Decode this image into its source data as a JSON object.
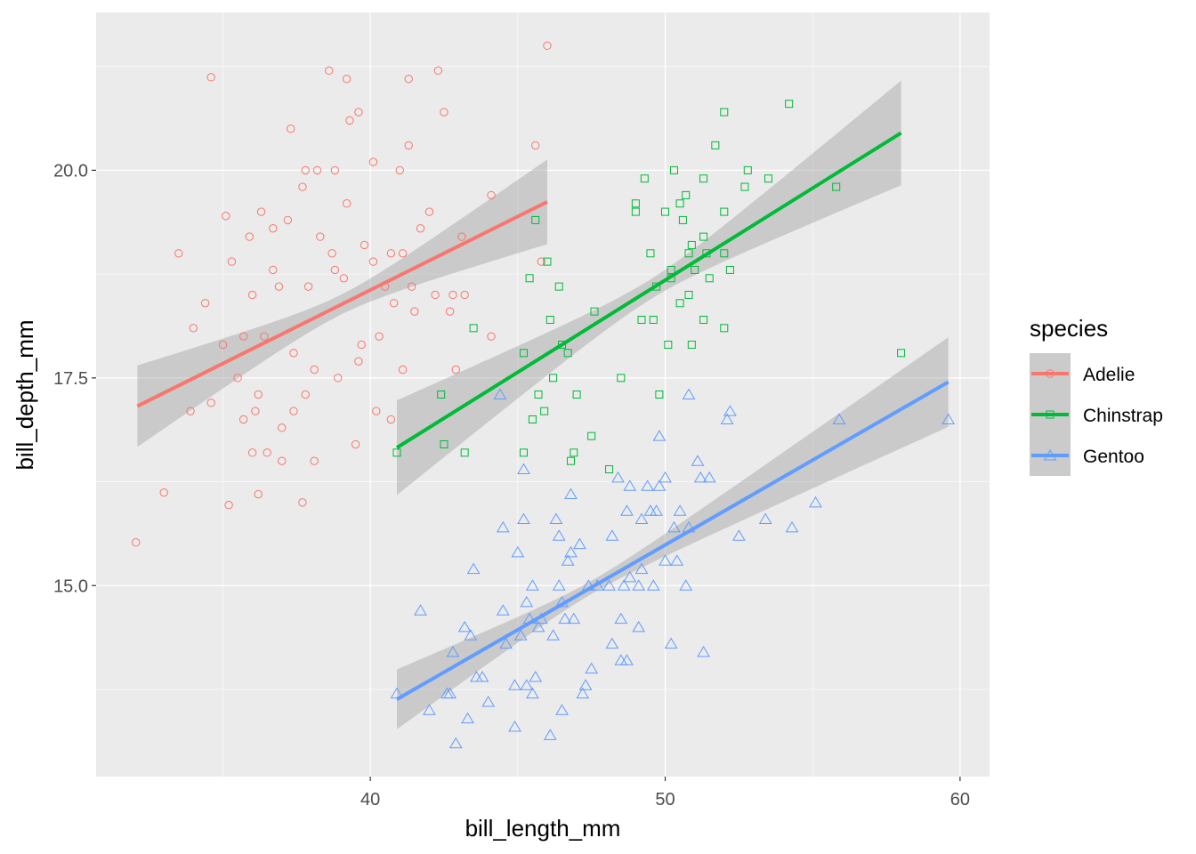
{
  "chart_data": {
    "type": "scatter",
    "title": "",
    "xlabel": "bill_length_mm",
    "ylabel": "bill_depth_mm",
    "xlim": [
      30.7,
      61.0
    ],
    "ylim": [
      12.7,
      21.9
    ],
    "xticks": [
      40,
      50,
      60
    ],
    "xtick_labels": [
      "40",
      "50",
      "60"
    ],
    "yticks": [
      15,
      17.5,
      20
    ],
    "ytick_labels": [
      "15.0",
      "17.5",
      "20.0"
    ],
    "grid": true,
    "legend": {
      "title": "species",
      "placement": "right"
    },
    "series": [
      {
        "name": "Adelie",
        "color": "#F8766D",
        "shape": "circle",
        "fit": {
          "x": [
            32.1,
            46.0
          ],
          "y": [
            17.16,
            19.62
          ]
        },
        "band": {
          "x": [
            32.1,
            39.0,
            46.0
          ],
          "half_width": [
            0.49,
            0.12,
            0.51
          ]
        },
        "points": [
          [
            32.05,
            15.52
          ],
          [
            33.0,
            16.12
          ],
          [
            33.5,
            19.0
          ],
          [
            34.6,
            21.12
          ],
          [
            34.0,
            18.1
          ],
          [
            34.4,
            18.4
          ],
          [
            33.9,
            17.1
          ],
          [
            34.6,
            17.2
          ],
          [
            35.1,
            19.45
          ],
          [
            35.0,
            17.9
          ],
          [
            35.2,
            15.97
          ],
          [
            35.3,
            18.9
          ],
          [
            35.5,
            17.5
          ],
          [
            35.7,
            18.0
          ],
          [
            35.7,
            17.0
          ],
          [
            35.9,
            19.2
          ],
          [
            36.0,
            16.6
          ],
          [
            36.0,
            18.5
          ],
          [
            36.1,
            17.1
          ],
          [
            36.3,
            19.5
          ],
          [
            36.2,
            17.3
          ],
          [
            36.2,
            16.1
          ],
          [
            36.4,
            18.0
          ],
          [
            36.5,
            16.6
          ],
          [
            36.7,
            19.3
          ],
          [
            36.7,
            18.8
          ],
          [
            36.9,
            18.6
          ],
          [
            37.0,
            16.5
          ],
          [
            37.0,
            16.9
          ],
          [
            37.2,
            19.4
          ],
          [
            37.3,
            20.5
          ],
          [
            37.4,
            17.8
          ],
          [
            37.4,
            17.1
          ],
          [
            37.7,
            19.8
          ],
          [
            37.7,
            16.0
          ],
          [
            37.8,
            20.0
          ],
          [
            37.8,
            17.3
          ],
          [
            37.9,
            18.6
          ],
          [
            38.1,
            17.6
          ],
          [
            38.1,
            16.5
          ],
          [
            38.2,
            20.0
          ],
          [
            38.3,
            19.2
          ],
          [
            38.6,
            21.2
          ],
          [
            38.7,
            19.0
          ],
          [
            38.8,
            20.0
          ],
          [
            38.8,
            18.8
          ],
          [
            38.9,
            17.5
          ],
          [
            39.1,
            18.7
          ],
          [
            39.2,
            19.6
          ],
          [
            39.2,
            21.1
          ],
          [
            39.3,
            20.6
          ],
          [
            39.6,
            20.7
          ],
          [
            39.5,
            16.7
          ],
          [
            39.6,
            17.7
          ],
          [
            39.7,
            17.9
          ],
          [
            39.8,
            19.1
          ],
          [
            40.1,
            20.1
          ],
          [
            40.2,
            17.1
          ],
          [
            40.1,
            18.9
          ],
          [
            40.3,
            18.0
          ],
          [
            40.5,
            18.6
          ],
          [
            40.7,
            19.0
          ],
          [
            40.7,
            17.0
          ],
          [
            40.8,
            18.4
          ],
          [
            41.0,
            20.0
          ],
          [
            41.1,
            19.0
          ],
          [
            41.1,
            17.6
          ],
          [
            41.3,
            20.3
          ],
          [
            41.3,
            21.1
          ],
          [
            41.4,
            18.6
          ],
          [
            41.5,
            18.3
          ],
          [
            41.7,
            19.3
          ],
          [
            42.0,
            19.5
          ],
          [
            42.2,
            18.5
          ],
          [
            42.3,
            21.2
          ],
          [
            42.5,
            20.7
          ],
          [
            42.7,
            18.3
          ],
          [
            42.8,
            18.5
          ],
          [
            42.9,
            17.6
          ],
          [
            43.1,
            19.2
          ],
          [
            43.2,
            18.5
          ],
          [
            44.1,
            19.7
          ],
          [
            44.1,
            18.0
          ],
          [
            45.6,
            20.3
          ],
          [
            45.8,
            18.9
          ],
          [
            46.0,
            21.5
          ]
        ]
      },
      {
        "name": "Chinstrap",
        "color": "#00BA38",
        "shape": "square",
        "fit": {
          "x": [
            40.9,
            58.0
          ],
          "y": [
            16.66,
            20.45
          ]
        },
        "band": {
          "x": [
            40.9,
            49.5,
            58.0
          ],
          "half_width": [
            0.57,
            0.12,
            0.63
          ]
        },
        "points": [
          [
            40.9,
            16.6
          ],
          [
            42.4,
            17.3
          ],
          [
            42.5,
            16.7
          ],
          [
            43.2,
            16.6
          ],
          [
            43.5,
            18.1
          ],
          [
            45.2,
            17.8
          ],
          [
            45.2,
            16.6
          ],
          [
            45.4,
            18.7
          ],
          [
            45.6,
            19.4
          ],
          [
            45.5,
            17.0
          ],
          [
            45.7,
            17.3
          ],
          [
            45.9,
            17.1
          ],
          [
            46.0,
            18.9
          ],
          [
            46.1,
            18.2
          ],
          [
            46.2,
            17.5
          ],
          [
            46.4,
            18.6
          ],
          [
            46.5,
            17.9
          ],
          [
            46.7,
            17.8
          ],
          [
            46.8,
            16.5
          ],
          [
            46.9,
            16.6
          ],
          [
            47.0,
            17.3
          ],
          [
            47.5,
            16.8
          ],
          [
            47.6,
            18.3
          ],
          [
            48.1,
            16.4
          ],
          [
            48.5,
            17.5
          ],
          [
            49.0,
            19.6
          ],
          [
            49.0,
            19.5
          ],
          [
            49.3,
            19.9
          ],
          [
            49.2,
            18.2
          ],
          [
            49.5,
            19.0
          ],
          [
            49.6,
            18.2
          ],
          [
            49.7,
            18.6
          ],
          [
            49.8,
            17.3
          ],
          [
            50.0,
            19.5
          ],
          [
            50.1,
            17.9
          ],
          [
            50.2,
            18.7
          ],
          [
            50.2,
            18.8
          ],
          [
            50.3,
            20.0
          ],
          [
            50.5,
            19.6
          ],
          [
            50.5,
            18.4
          ],
          [
            50.6,
            19.4
          ],
          [
            50.7,
            19.7
          ],
          [
            50.8,
            19.0
          ],
          [
            50.8,
            18.5
          ],
          [
            50.9,
            17.9
          ],
          [
            50.9,
            19.1
          ],
          [
            51.0,
            18.8
          ],
          [
            51.3,
            19.2
          ],
          [
            51.3,
            19.9
          ],
          [
            51.3,
            18.2
          ],
          [
            51.4,
            19.0
          ],
          [
            51.5,
            18.7
          ],
          [
            51.7,
            20.3
          ],
          [
            52.0,
            19.5
          ],
          [
            52.0,
            20.7
          ],
          [
            52.0,
            19.0
          ],
          [
            52.0,
            18.1
          ],
          [
            52.2,
            18.8
          ],
          [
            52.7,
            19.8
          ],
          [
            52.8,
            20.0
          ],
          [
            53.5,
            19.9
          ],
          [
            54.2,
            20.8
          ],
          [
            55.8,
            19.8
          ],
          [
            58.0,
            17.8
          ]
        ]
      },
      {
        "name": "Gentoo",
        "color": "#619CFF",
        "shape": "triangle",
        "fit": {
          "x": [
            40.9,
            59.6
          ],
          "y": [
            13.63,
            17.45
          ]
        },
        "band": {
          "x": [
            40.9,
            47.5,
            59.6
          ],
          "half_width": [
            0.36,
            0.08,
            0.54
          ]
        },
        "points": [
          [
            40.9,
            13.7
          ],
          [
            41.7,
            14.7
          ],
          [
            42.0,
            13.5
          ],
          [
            42.6,
            13.7
          ],
          [
            42.7,
            13.7
          ],
          [
            42.8,
            14.2
          ],
          [
            42.9,
            13.1
          ],
          [
            43.2,
            14.5
          ],
          [
            43.3,
            13.4
          ],
          [
            43.4,
            14.4
          ],
          [
            43.5,
            15.2
          ],
          [
            43.6,
            13.9
          ],
          [
            43.8,
            13.9
          ],
          [
            44.0,
            13.6
          ],
          [
            44.4,
            17.3
          ],
          [
            44.5,
            14.7
          ],
          [
            44.5,
            15.7
          ],
          [
            44.6,
            14.3
          ],
          [
            44.9,
            13.3
          ],
          [
            44.9,
            13.8
          ],
          [
            45.0,
            15.4
          ],
          [
            45.1,
            14.4
          ],
          [
            45.2,
            16.4
          ],
          [
            45.2,
            15.8
          ],
          [
            45.3,
            14.8
          ],
          [
            45.3,
            13.8
          ],
          [
            45.4,
            14.6
          ],
          [
            45.5,
            13.7
          ],
          [
            45.5,
            15.0
          ],
          [
            45.6,
            13.9
          ],
          [
            45.7,
            14.5
          ],
          [
            45.8,
            14.6
          ],
          [
            46.1,
            13.2
          ],
          [
            46.2,
            14.4
          ],
          [
            46.3,
            15.8
          ],
          [
            46.4,
            15.6
          ],
          [
            46.4,
            15.0
          ],
          [
            46.5,
            13.5
          ],
          [
            46.5,
            14.8
          ],
          [
            46.6,
            14.6
          ],
          [
            46.7,
            15.3
          ],
          [
            46.8,
            16.1
          ],
          [
            46.8,
            15.4
          ],
          [
            46.9,
            14.6
          ],
          [
            47.1,
            15.5
          ],
          [
            47.2,
            13.7
          ],
          [
            47.3,
            13.8
          ],
          [
            47.4,
            15.0
          ],
          [
            47.5,
            14.0
          ],
          [
            47.7,
            15.0
          ],
          [
            48.1,
            15.0
          ],
          [
            48.2,
            15.6
          ],
          [
            48.2,
            14.3
          ],
          [
            48.4,
            16.3
          ],
          [
            48.5,
            14.6
          ],
          [
            48.5,
            14.1
          ],
          [
            48.6,
            15.0
          ],
          [
            48.7,
            15.9
          ],
          [
            48.7,
            14.1
          ],
          [
            48.8,
            16.2
          ],
          [
            48.8,
            15.1
          ],
          [
            49.1,
            15.0
          ],
          [
            49.1,
            14.5
          ],
          [
            49.2,
            15.2
          ],
          [
            49.2,
            15.8
          ],
          [
            49.4,
            16.2
          ],
          [
            49.5,
            15.9
          ],
          [
            49.6,
            15.0
          ],
          [
            49.7,
            15.9
          ],
          [
            49.8,
            16.8
          ],
          [
            49.8,
            16.2
          ],
          [
            50.0,
            16.3
          ],
          [
            50.0,
            15.3
          ],
          [
            50.2,
            14.3
          ],
          [
            50.3,
            15.7
          ],
          [
            50.4,
            15.3
          ],
          [
            50.5,
            15.9
          ],
          [
            50.7,
            15.0
          ],
          [
            50.8,
            17.3
          ],
          [
            50.8,
            15.7
          ],
          [
            51.1,
            16.5
          ],
          [
            51.2,
            16.3
          ],
          [
            51.3,
            14.2
          ],
          [
            51.5,
            16.3
          ],
          [
            52.1,
            17.0
          ],
          [
            52.2,
            17.1
          ],
          [
            52.5,
            15.6
          ],
          [
            53.4,
            15.8
          ],
          [
            54.3,
            15.7
          ],
          [
            55.1,
            16.0
          ],
          [
            55.9,
            17.0
          ],
          [
            59.6,
            17.0
          ]
        ]
      }
    ]
  }
}
